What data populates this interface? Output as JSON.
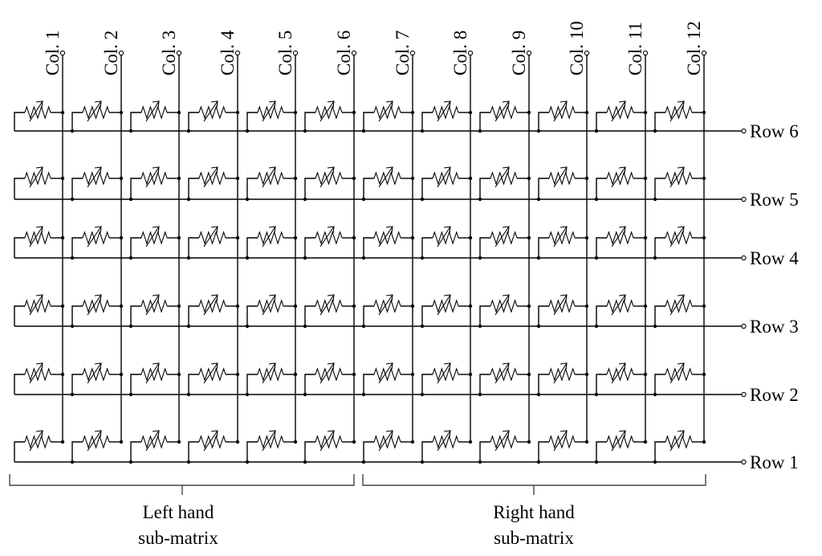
{
  "columns": [
    "Col. 1",
    "Col. 2",
    "Col. 3",
    "Col. 4",
    "Col. 5",
    "Col. 6",
    "Col. 7",
    "Col. 8",
    "Col. 9",
    "Col. 10",
    "Col. 11",
    "Col. 12"
  ],
  "rows": [
    "Row 6",
    "Row 5",
    "Row 4",
    "Row 3",
    "Row 2",
    "Row 1"
  ],
  "groups": [
    {
      "line1": "Left hand",
      "line2": "sub-matrix"
    },
    {
      "line1": "Right hand",
      "line2": "sub-matrix"
    }
  ],
  "element_type": "variable-resistor-icon"
}
